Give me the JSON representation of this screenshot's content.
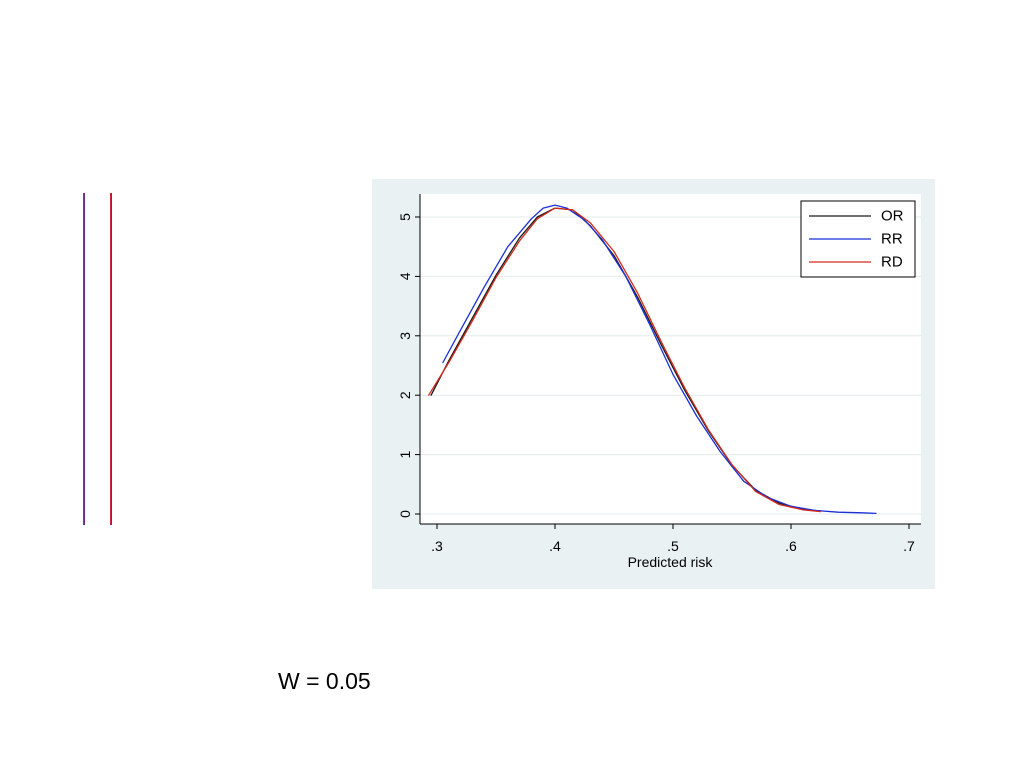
{
  "caption": "W = 0.05",
  "chart_data": {
    "type": "line",
    "title": "",
    "xlabel": "Predicted risk",
    "ylabel": "",
    "xlim": [
      0.3,
      0.7
    ],
    "ylim": [
      0,
      5
    ],
    "x_ticks": [
      0.3,
      0.4,
      0.5,
      0.6,
      0.7
    ],
    "x_tick_labels": [
      ".3",
      ".4",
      ".5",
      ".6",
      ".7"
    ],
    "y_ticks": [
      0,
      1,
      2,
      3,
      4,
      5
    ],
    "y_tick_labels": [
      "0",
      "1",
      "2",
      "3",
      "4",
      "5"
    ],
    "grid": true,
    "legend_position": "top-right",
    "colors": {
      "plot_region_bg": "#eaf1f3",
      "plot_bg": "#ffffff",
      "grid": "#e4ebee",
      "left_marks": "#cf1f45"
    },
    "series": [
      {
        "name": "OR",
        "color": "#1a1a1a",
        "x": [
          0.295,
          0.31,
          0.33,
          0.35,
          0.37,
          0.385,
          0.4,
          0.415,
          0.43,
          0.45,
          0.47,
          0.49,
          0.51,
          0.53,
          0.55,
          0.57,
          0.59,
          0.61,
          0.625
        ],
        "y": [
          2.0,
          2.58,
          3.3,
          4.02,
          4.65,
          5.0,
          5.15,
          5.12,
          4.85,
          4.35,
          3.65,
          2.85,
          2.08,
          1.4,
          0.82,
          0.4,
          0.18,
          0.08,
          0.05
        ]
      },
      {
        "name": "RR",
        "color": "#1b2fd6",
        "x": [
          0.305,
          0.32,
          0.34,
          0.36,
          0.38,
          0.39,
          0.4,
          0.41,
          0.425,
          0.44,
          0.46,
          0.48,
          0.5,
          0.52,
          0.54,
          0.56,
          0.58,
          0.6,
          0.62,
          0.64,
          0.66,
          0.672
        ],
        "y": [
          2.55,
          3.1,
          3.82,
          4.5,
          4.97,
          5.15,
          5.2,
          5.15,
          4.95,
          4.62,
          4.0,
          3.2,
          2.35,
          1.65,
          1.05,
          0.55,
          0.28,
          0.13,
          0.06,
          0.03,
          0.02,
          0.01
        ]
      },
      {
        "name": "RD",
        "color": "#d42a1c",
        "x": [
          0.293,
          0.31,
          0.33,
          0.35,
          0.37,
          0.385,
          0.4,
          0.415,
          0.43,
          0.45,
          0.47,
          0.49,
          0.51,
          0.53,
          0.55,
          0.57,
          0.59,
          0.61,
          0.625
        ],
        "y": [
          2.0,
          2.55,
          3.25,
          3.98,
          4.6,
          4.97,
          5.15,
          5.12,
          4.9,
          4.42,
          3.72,
          2.9,
          2.12,
          1.42,
          0.83,
          0.38,
          0.16,
          0.07,
          0.04
        ]
      }
    ]
  }
}
